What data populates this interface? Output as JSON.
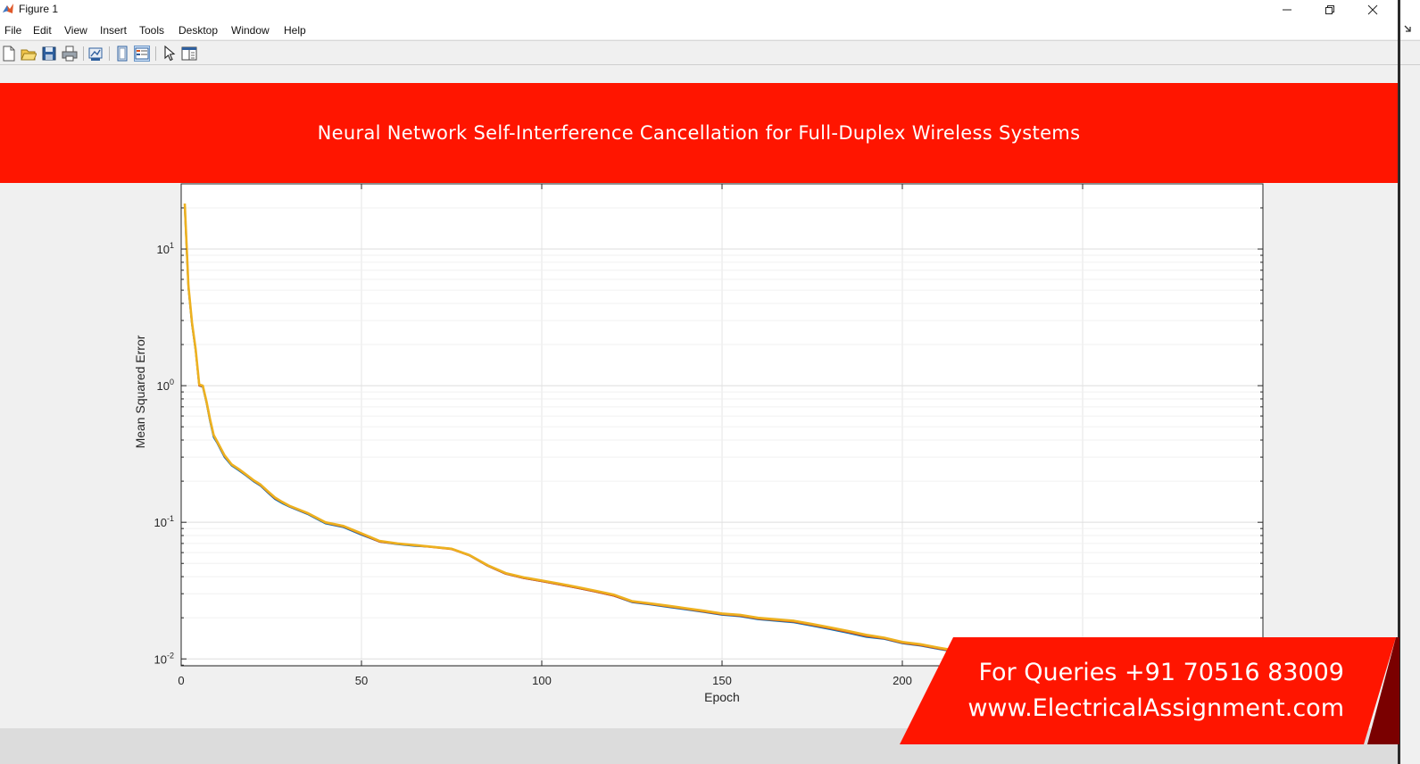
{
  "window": {
    "title": "Figure 1",
    "controls": [
      "minimize",
      "restore",
      "close"
    ]
  },
  "menubar": {
    "items": [
      "File",
      "Edit",
      "View",
      "Insert",
      "Tools",
      "Desktop",
      "Window",
      "Help"
    ]
  },
  "toolbar": {
    "icons": [
      "new-figure-icon",
      "open-file-icon",
      "save-icon",
      "print-icon",
      "link-plot-icon",
      "hide-plot-tools-icon",
      "show-plot-tools-icon",
      "edit-plot-icon",
      "open-property-inspector-icon"
    ]
  },
  "banner": {
    "text": "Neural Network Self-Interference Cancellation for Full-Duplex Wireless Systems",
    "color": "#ff1500"
  },
  "promo": {
    "line1": "For Queries +91 70516 83009",
    "line2": "www.ElectricalAssignment.com",
    "color": "#ff1500"
  },
  "chart_data": {
    "type": "line",
    "title": "",
    "xlabel": "Epoch",
    "ylabel": "Mean Squared Error",
    "xlim": [
      0,
      300
    ],
    "ylim": [
      0.0089,
      30
    ],
    "yscale": "log",
    "grid": true,
    "xticks": [
      0,
      50,
      100,
      150,
      200
    ],
    "yticks": [
      {
        "base": "10",
        "exp": "1",
        "value": 10
      },
      {
        "base": "10",
        "exp": "0",
        "value": 1
      },
      {
        "base": "10",
        "exp": "-1",
        "value": 0.1
      },
      {
        "base": "10",
        "exp": "-2",
        "value": 0.01
      }
    ],
    "series": [
      {
        "color": "#0072bd",
        "x": [
          1,
          2,
          3,
          4,
          5,
          6,
          7,
          8,
          9,
          10,
          12,
          14,
          16,
          18,
          20,
          22,
          24,
          26,
          28,
          30,
          35,
          40,
          45,
          50,
          55,
          60,
          65,
          70,
          75,
          80,
          85,
          90,
          95,
          100,
          105,
          110,
          115,
          120,
          125,
          130,
          135,
          140,
          145,
          150,
          155,
          160,
          165,
          170,
          175,
          180,
          185,
          190,
          195,
          200,
          205,
          210,
          215,
          220
        ],
        "y": [
          20,
          5.2,
          2.8,
          1.8,
          1.0,
          0.98,
          0.75,
          0.55,
          0.42,
          0.38,
          0.3,
          0.26,
          0.24,
          0.22,
          0.2,
          0.185,
          0.165,
          0.148,
          0.138,
          0.13,
          0.115,
          0.098,
          0.092,
          0.081,
          0.072,
          0.069,
          0.067,
          0.066,
          0.064,
          0.057,
          0.048,
          0.042,
          0.039,
          0.037,
          0.035,
          0.033,
          0.031,
          0.029,
          0.026,
          0.025,
          0.024,
          0.023,
          0.022,
          0.021,
          0.0205,
          0.0195,
          0.019,
          0.0185,
          0.0175,
          0.0165,
          0.0155,
          0.0145,
          0.014,
          0.013,
          0.0125,
          0.0118,
          0.0112,
          0.0106
        ]
      },
      {
        "color": "#d95319",
        "x": [
          1,
          2,
          3,
          4,
          5,
          6,
          7,
          8,
          9,
          10,
          12,
          14,
          16,
          18,
          20,
          22,
          24,
          26,
          28,
          30,
          35,
          40,
          45,
          50,
          55,
          60,
          65,
          70,
          75,
          80,
          85,
          90,
          95,
          100,
          105,
          110,
          115,
          120,
          125,
          130,
          135,
          140,
          145,
          150,
          155,
          160,
          165,
          170,
          175,
          180,
          185,
          190,
          195,
          200,
          205,
          210,
          215,
          220
        ],
        "y": [
          21,
          5.3,
          2.85,
          1.82,
          1.0,
          0.99,
          0.76,
          0.56,
          0.43,
          0.385,
          0.305,
          0.263,
          0.243,
          0.222,
          0.202,
          0.187,
          0.167,
          0.15,
          0.14,
          0.131,
          0.116,
          0.099,
          0.093,
          0.082,
          0.072,
          0.0695,
          0.0675,
          0.0655,
          0.0635,
          0.057,
          0.048,
          0.042,
          0.039,
          0.037,
          0.035,
          0.033,
          0.031,
          0.029,
          0.0262,
          0.0252,
          0.0242,
          0.0232,
          0.0222,
          0.0212,
          0.0207,
          0.0197,
          0.0192,
          0.0187,
          0.0177,
          0.0167,
          0.0157,
          0.0147,
          0.0141,
          0.0131,
          0.0126,
          0.0119,
          0.0113,
          0.0107
        ]
      },
      {
        "color": "#edb120",
        "x": [
          1,
          2,
          3,
          4,
          5,
          6,
          7,
          8,
          9,
          10,
          12,
          14,
          16,
          18,
          20,
          22,
          24,
          26,
          28,
          30,
          35,
          40,
          45,
          50,
          55,
          60,
          65,
          70,
          75,
          80,
          85,
          90,
          95,
          100,
          105,
          110,
          115,
          120,
          125,
          130,
          135,
          140,
          145,
          150,
          155,
          160,
          165,
          170,
          175,
          180,
          185,
          190,
          195,
          200,
          205,
          210,
          215,
          220
        ],
        "y": [
          21.5,
          5.4,
          2.9,
          1.85,
          1.02,
          1.0,
          0.77,
          0.57,
          0.435,
          0.39,
          0.31,
          0.265,
          0.245,
          0.224,
          0.204,
          0.189,
          0.169,
          0.152,
          0.141,
          0.132,
          0.117,
          0.1,
          0.094,
          0.083,
          0.073,
          0.07,
          0.068,
          0.066,
          0.064,
          0.0575,
          0.0485,
          0.0425,
          0.0395,
          0.0375,
          0.0355,
          0.0335,
          0.0315,
          0.0295,
          0.0265,
          0.0255,
          0.0245,
          0.0235,
          0.0225,
          0.0215,
          0.021,
          0.02,
          0.0195,
          0.019,
          0.018,
          0.017,
          0.016,
          0.015,
          0.0143,
          0.0133,
          0.0128,
          0.0121,
          0.0115,
          0.0108
        ]
      }
    ]
  }
}
